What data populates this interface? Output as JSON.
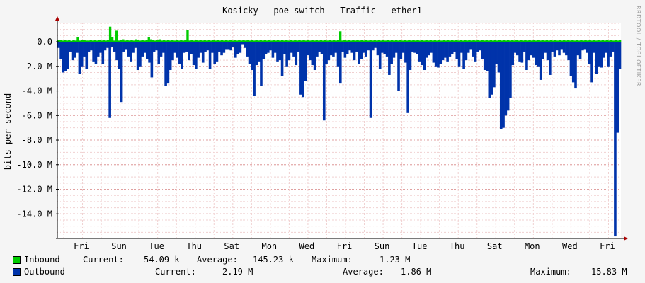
{
  "chart_data": {
    "type": "area",
    "title": "Kosicky - poe switch - Traffic - ether1",
    "ylabel": "bits per second",
    "ylim": [
      -16000000,
      1500000
    ],
    "yticks": [
      {
        "value": 0,
        "label": "0.0"
      },
      {
        "value": -2000000,
        "label": "-2.0 M"
      },
      {
        "value": -4000000,
        "label": "-4.0 M"
      },
      {
        "value": -6000000,
        "label": "-6.0 M"
      },
      {
        "value": -8000000,
        "label": "-8.0 M"
      },
      {
        "value": -10000000,
        "label": "-10.0 M"
      },
      {
        "value": -12000000,
        "label": "-12.0 M"
      },
      {
        "value": -14000000,
        "label": "-14.0 M"
      }
    ],
    "xticks": [
      "Fri",
      "Sun",
      "Tue",
      "Thu",
      "Sat",
      "Mon",
      "Wed",
      "Fri",
      "Sun",
      "Tue",
      "Thu",
      "Sat",
      "Mon",
      "Wed",
      "Fri"
    ],
    "grid": true,
    "series": [
      {
        "name": "Inbound",
        "color": "#00cc00",
        "values": [
          0.12,
          0.12,
          0.1,
          0.15,
          0.1,
          0.12,
          0.08,
          0.12,
          0.1,
          0.4,
          0.1,
          0.15,
          0.12,
          0.1,
          0.1,
          0.12,
          0.1,
          0.12,
          0.1,
          0.12,
          0.1,
          0.12,
          0.1,
          0.15,
          1.23,
          0.4,
          0.1,
          0.9,
          0.1,
          0.12,
          0.2,
          0.1,
          0.12,
          0.1,
          0.12,
          0.1,
          0.2,
          0.12,
          0.1,
          0.12,
          0.1,
          0.12,
          0.4,
          0.2,
          0.12,
          0.1,
          0.12,
          0.2,
          0.1,
          0.12,
          0.1,
          0.15,
          0.1,
          0.12,
          0.1,
          0.12,
          0.1,
          0.12,
          0.1,
          0.12,
          0.95,
          0.1,
          0.12,
          0.1,
          0.12,
          0.1,
          0.12,
          0.1,
          0.12,
          0.1,
          0.12,
          0.1,
          0.12,
          0.1,
          0.12,
          0.1,
          0.12,
          0.1,
          0.12,
          0.1,
          0.12,
          0.1,
          0.12,
          0.1,
          0.12,
          0.1,
          0.12,
          0.1,
          0.12,
          0.1,
          0.12,
          0.1,
          0.12,
          0.1,
          0.12,
          0.1,
          0.12,
          0.1,
          0.12,
          0.1,
          0.12,
          0.1,
          0.12,
          0.1,
          0.12,
          0.1,
          0.12,
          0.1,
          0.12,
          0.1,
          0.12,
          0.1,
          0.12,
          0.1,
          0.12,
          0.1,
          0.12,
          0.1,
          0.12,
          0.1,
          0.12,
          0.1,
          0.12,
          0.1,
          0.12,
          0.1,
          0.12,
          0.1,
          0.12,
          0.1,
          0.12,
          0.85,
          0.1,
          0.12,
          0.1,
          0.12,
          0.1,
          0.12,
          0.1,
          0.12,
          0.1,
          0.12,
          0.1,
          0.12,
          0.1,
          0.12,
          0.1,
          0.12,
          0.1,
          0.12,
          0.1,
          0.12,
          0.1,
          0.12,
          0.1,
          0.12,
          0.1,
          0.12,
          0.1,
          0.12,
          0.1,
          0.12,
          0.1,
          0.12,
          0.1,
          0.12,
          0.1,
          0.12,
          0.1,
          0.12,
          0.1,
          0.12,
          0.1,
          0.12,
          0.1,
          0.12,
          0.1,
          0.12,
          0.1,
          0.12,
          0.1,
          0.12,
          0.1,
          0.12,
          0.1,
          0.12,
          0.1,
          0.12,
          0.1,
          0.12,
          0.1,
          0.12,
          0.1,
          0.12,
          0.1,
          0.12,
          0.1,
          0.12,
          0.1,
          0.12,
          0.1,
          0.12,
          0.1,
          0.12,
          0.1,
          0.12,
          0.1,
          0.12,
          0.1,
          0.12,
          0.1,
          0.12,
          0.1,
          0.12,
          0.1,
          0.12,
          0.1,
          0.12,
          0.1,
          0.12,
          0.1,
          0.12,
          0.1,
          0.12,
          0.1,
          0.12,
          0.1,
          0.12,
          0.1,
          0.12,
          0.1,
          0.12,
          0.1,
          0.12,
          0.1,
          0.12,
          0.1,
          0.12,
          0.1,
          0.12,
          0.1,
          0.12,
          0.1,
          0.12,
          0.1,
          0.12,
          0.1,
          0.12,
          0.1,
          0.12,
          0.1,
          0.12,
          0.1,
          0.12,
          0.1,
          0.12,
          0.1,
          0.12,
          0.1,
          0.12,
          0.1,
          0.12
        ]
      },
      {
        "name": "Outbound",
        "color": "#0033aa",
        "values": [
          -0.5,
          -1.4,
          -2.5,
          -2.4,
          -2.2,
          -0.8,
          -1.5,
          -1.3,
          -0.9,
          -2.6,
          -2.0,
          -1.2,
          -2.2,
          -0.8,
          -0.7,
          -1.6,
          -1.8,
          -1.2,
          -0.9,
          -1.8,
          -0.7,
          -0.5,
          -6.2,
          -0.4,
          -0.8,
          -1.5,
          -2.2,
          -4.9,
          -0.8,
          -0.6,
          -1.2,
          -1.6,
          -0.9,
          -0.5,
          -2.3,
          -2.0,
          -1.2,
          -0.9,
          -1.4,
          -1.7,
          -2.9,
          -0.8,
          -0.7,
          -1.8,
          -1.2,
          -0.9,
          -3.6,
          -3.4,
          -2.3,
          -1.5,
          -0.9,
          -1.3,
          -1.8,
          -2.2,
          -0.9,
          -0.8,
          -1.5,
          -1.0,
          -1.9,
          -2.2,
          -1.3,
          -0.9,
          -1.7,
          -0.8,
          -0.7,
          -2.2,
          -0.9,
          -1.8,
          -1.6,
          -0.8,
          -1.1,
          -0.9,
          -0.6,
          -0.6,
          -0.7,
          -0.4,
          -1.3,
          -1.0,
          -0.9,
          -0.2,
          -0.5,
          -1.2,
          -1.8,
          -2.3,
          -4.4,
          -1.9,
          -1.6,
          -3.6,
          -1.4,
          -1.0,
          -0.9,
          -0.7,
          -1.3,
          -0.9,
          -1.6,
          -1.5,
          -2.8,
          -1.0,
          -2.0,
          -1.5,
          -0.9,
          -1.2,
          -1.9,
          -0.8,
          -4.3,
          -4.5,
          -3.2,
          -1.1,
          -1.5,
          -1.9,
          -2.3,
          -1.2,
          -0.8,
          -1.0,
          -6.4,
          -1.8,
          -1.5,
          -1.1,
          -1.2,
          -0.9,
          -2.0,
          -3.4,
          -0.8,
          -1.3,
          -1.0,
          -0.7,
          -0.9,
          -1.5,
          -0.8,
          -1.8,
          -1.4,
          -0.9,
          -1.2,
          -0.7,
          -6.2,
          -0.7,
          -0.5,
          -1.1,
          -2.2,
          -0.9,
          -1.0,
          -1.2,
          -2.7,
          -1.8,
          -1.3,
          -0.9,
          -4.0,
          -1.4,
          -0.9,
          -1.7,
          -5.8,
          -2.3,
          -0.8,
          -0.9,
          -1.0,
          -1.6,
          -1.9,
          -2.3,
          -1.3,
          -1.1,
          -0.9,
          -1.7,
          -2.0,
          -2.1,
          -1.8,
          -1.5,
          -1.3,
          -1.6,
          -1.2,
          -1.0,
          -0.8,
          -1.4,
          -2.0,
          -0.9,
          -2.2,
          -1.5,
          -0.9,
          -0.6,
          -1.2,
          -1.6,
          -0.8,
          -0.7,
          -1.4,
          -2.3,
          -2.4,
          -4.6,
          -4.3,
          -3.7,
          -1.8,
          -2.5,
          -7.1,
          -7.0,
          -6.0,
          -5.6,
          -4.6,
          -1.9,
          -0.9,
          -1.1,
          -1.6,
          -1.7,
          -0.8,
          -2.3,
          -1.5,
          -1.1,
          -1.3,
          -1.9,
          -2.0,
          -3.1,
          -1.4,
          -0.9,
          -1.5,
          -2.7,
          -0.8,
          -1.2,
          -0.7,
          -1.1,
          -0.6,
          -0.9,
          -1.1,
          -1.5,
          -2.8,
          -3.3,
          -3.8,
          -1.1,
          -1.4,
          -0.7,
          -0.6,
          -0.9,
          -1.8,
          -3.3,
          -0.9,
          -2.6,
          -2.0,
          -2.1,
          -1.3,
          -0.9,
          -2.0,
          -1.2,
          -0.8,
          -15.83,
          -7.4,
          -2.2
        ]
      }
    ]
  },
  "legend": {
    "inbound": {
      "name": "Inbound",
      "current_label": "Current:",
      "current": "54.09 k",
      "average_label": "Average:",
      "average": "145.23 k",
      "maximum_label": "Maximum:",
      "maximum": "1.23 M",
      "color": "#00cc00"
    },
    "outbound": {
      "name": "Outbound",
      "current_label": "Current:",
      "current": "2.19 M",
      "average_label": "Average:",
      "average": "1.86 M",
      "maximum_label": "Maximum:",
      "maximum": "15.83 M",
      "color": "#0033aa"
    }
  },
  "watermark": "RRDTOOL / TOBI OETIKER"
}
